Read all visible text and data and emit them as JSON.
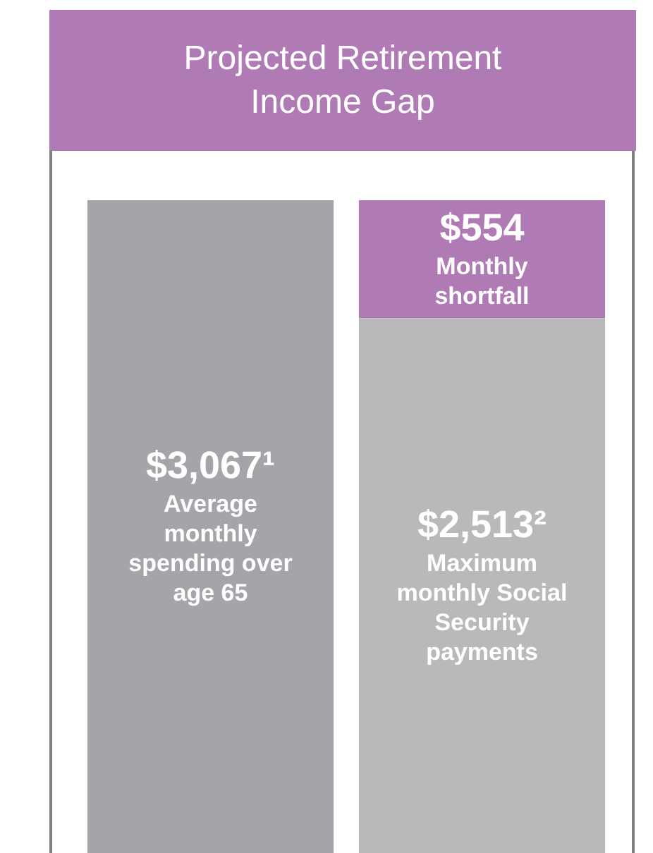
{
  "chart_data": {
    "type": "bar",
    "title": "Projected Retirement Income Gap",
    "stacked": true,
    "categories": [
      null,
      null
    ],
    "series": [
      {
        "colors": [
          "#a5a4a9",
          "#b9b9bb"
        ],
        "values": [
          3067,
          2513
        ],
        "value_labels": [
          "$3,067¹",
          "$2,513²"
        ]
      },
      {
        "color": "#b07bb5",
        "values": [
          null,
          554
        ],
        "value_labels": [
          null,
          "$554"
        ]
      }
    ],
    "annotations": [
      "Average monthly spending over age 65",
      "Monthly shortfall",
      "Maximum monthly Social Security payments"
    ]
  }
}
